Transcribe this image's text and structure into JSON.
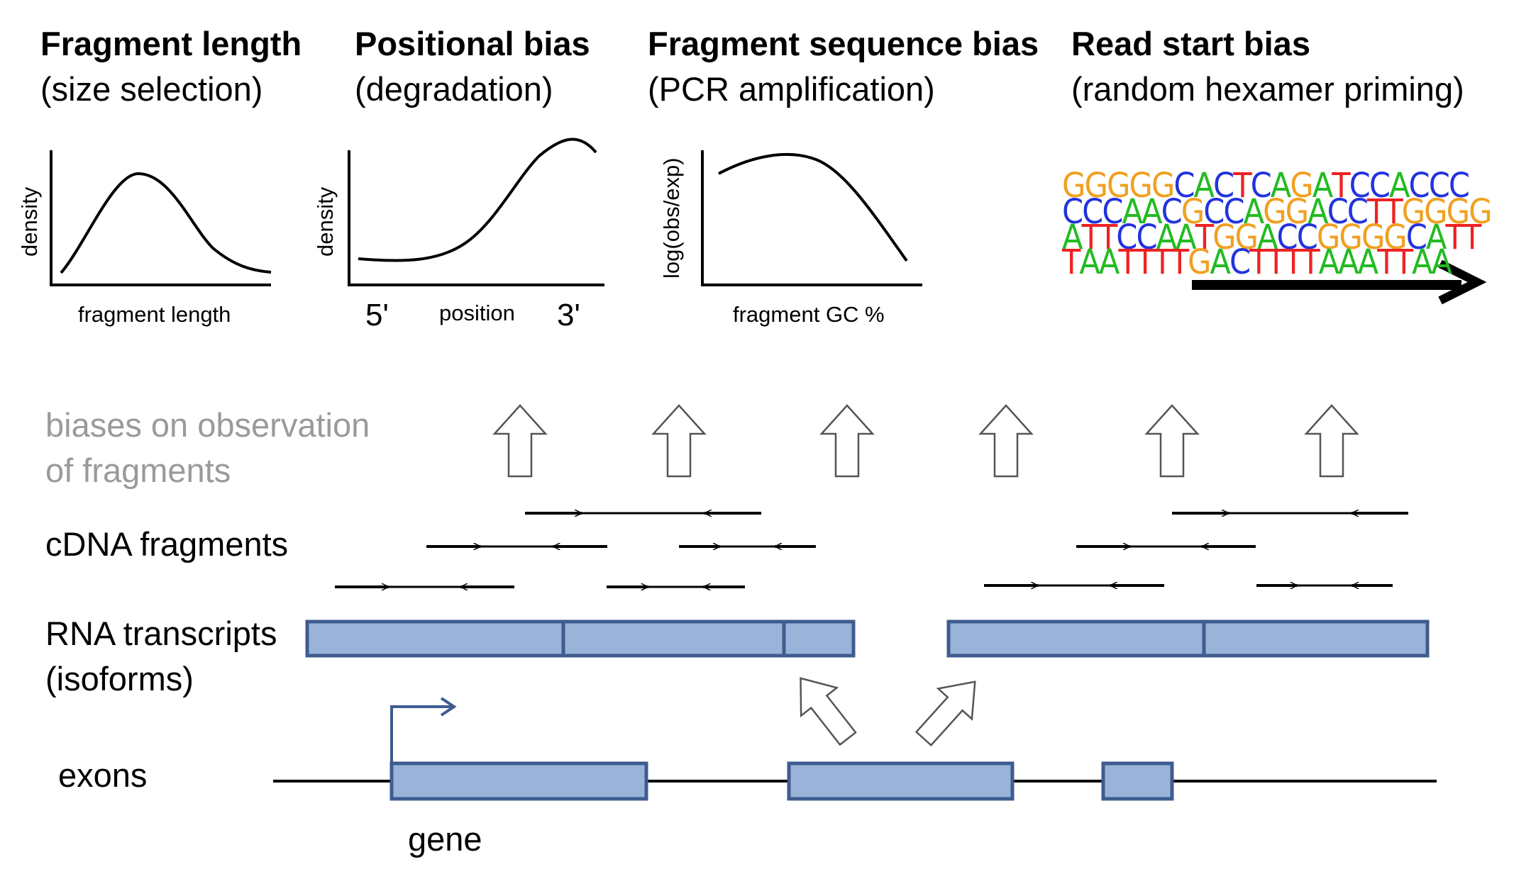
{
  "panels": [
    {
      "title": "Fragment length",
      "subtitle": "(size selection)",
      "y_label": "density",
      "x_label": "fragment length"
    },
    {
      "title": "Positional bias",
      "subtitle": "(degradation)",
      "y_label": "density",
      "x_label": "position",
      "x_left": "5'",
      "x_right": "3'"
    },
    {
      "title": "Fragment sequence bias",
      "subtitle": "(PCR amplification)",
      "y_label": "log(obs/exp)",
      "x_label": "fragment GC %"
    },
    {
      "title": "Read start bias",
      "subtitle": "(random hexamer priming)"
    }
  ],
  "logo_rows": [
    "GGGGGCACTCAGATCCACCC",
    "CCCAACGCCAGGACCTTGGGG",
    "ATTCCAATGGACCGGGGCATT",
    "TAATTTTGACTTTTAAATTAA"
  ],
  "base_colors": {
    "A": "#22bb22",
    "C": "#2233dd",
    "G": "#f0a020",
    "T": "#ee2222"
  },
  "labels": {
    "biases_line1": "biases on observation",
    "biases_line2": "of fragments",
    "cdna": "cDNA fragments",
    "rna_line1": "RNA transcripts",
    "rna_line2": "(isoforms)",
    "exons": "exons",
    "gene": "gene"
  },
  "colors": {
    "box_fill": "#9ab3d9",
    "box_stroke": "#3e5c8f",
    "gray_text": "#9a9a9a"
  }
}
